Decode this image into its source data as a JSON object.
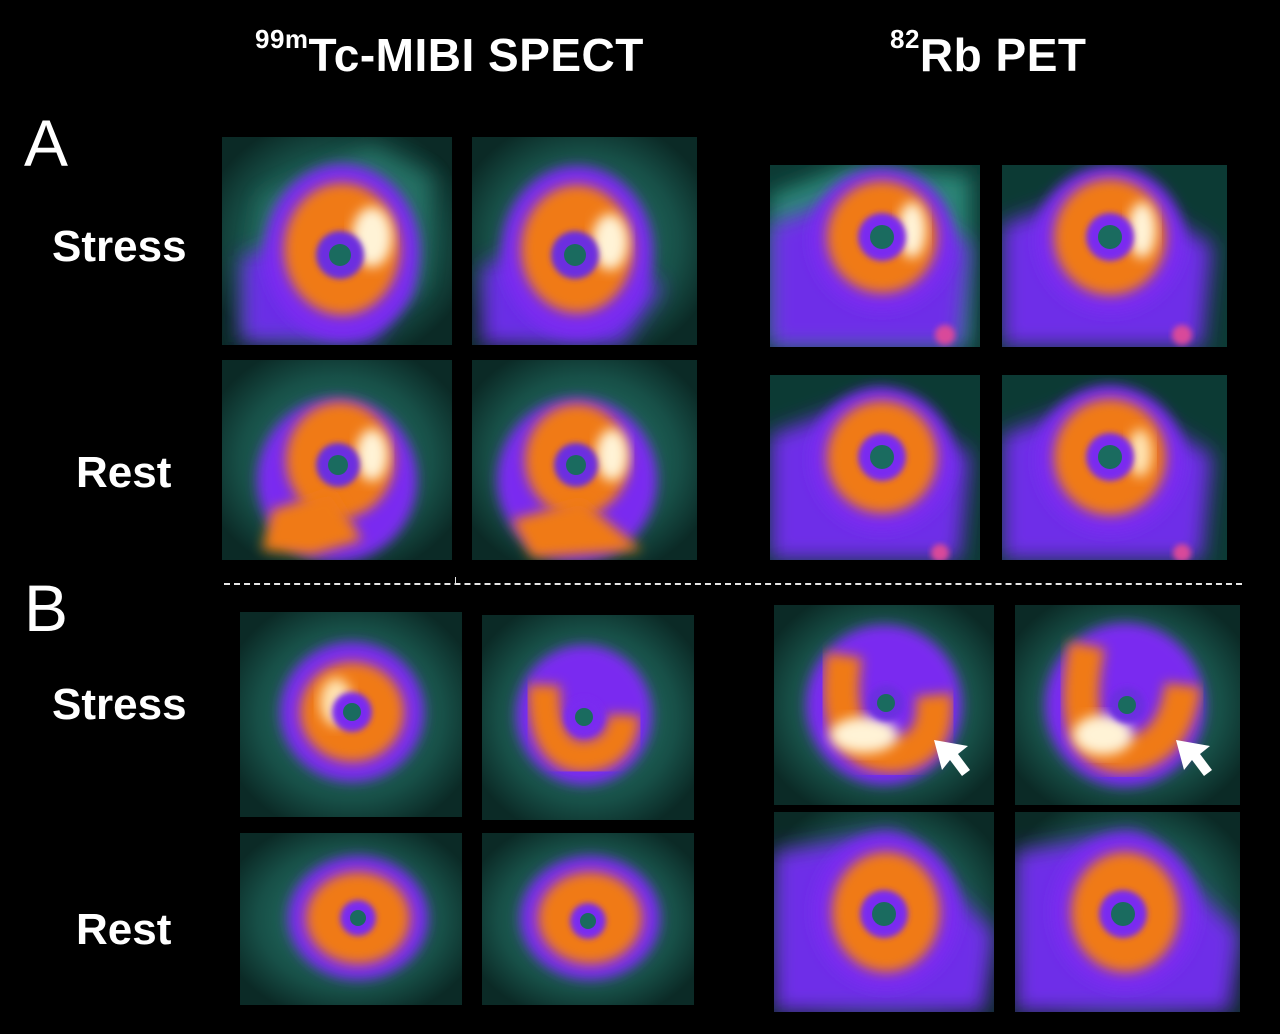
{
  "headers": {
    "spect": {
      "sup": "99m",
      "text": "Tc-MIBI SPECT"
    },
    "pet": {
      "sup": "82",
      "text": "Rb PET"
    }
  },
  "panels": [
    {
      "letter": "A",
      "rows": [
        "Stress",
        "Rest"
      ]
    },
    {
      "letter": "B",
      "rows": [
        "Stress",
        "Rest"
      ]
    }
  ],
  "colors": {
    "background": "#000000",
    "teal": "#1f6f63",
    "purple": "#7a2cf0",
    "orange": "#f07a18",
    "hot": "#fff3d6",
    "arrow": "#ffffff"
  },
  "icons": [
    "arrow-pointer-icon"
  ]
}
